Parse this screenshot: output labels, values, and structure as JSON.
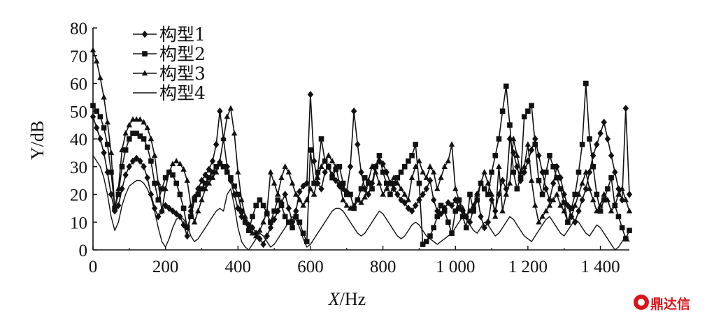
{
  "chart_data": {
    "type": "line",
    "title": "",
    "xlabel": "X/Hz",
    "xlabel_italic_part": "X",
    "xlabel_unit_part": "/Hz",
    "ylabel": "Y/dB",
    "xlim": [
      0,
      1480
    ],
    "ylim": [
      0,
      80
    ],
    "x_ticks": [
      0,
      200,
      400,
      600,
      800,
      1000,
      1200,
      1400
    ],
    "x_tick_labels": [
      "0",
      "200",
      "400",
      "600",
      "800",
      "1 000",
      "1 200",
      "1 400"
    ],
    "y_ticks": [
      0,
      10,
      20,
      30,
      40,
      50,
      60,
      70,
      80
    ],
    "y_tick_labels": [
      "0",
      "10",
      "20",
      "30",
      "40",
      "50",
      "60",
      "70",
      "80"
    ],
    "grid": false,
    "legend_position": "top-left",
    "series": [
      {
        "name": "构型1",
        "marker": "diamond",
        "x": [
          0,
          10,
          20,
          30,
          40,
          50,
          60,
          70,
          80,
          90,
          100,
          110,
          120,
          130,
          140,
          150,
          160,
          170,
          180,
          190,
          200,
          210,
          220,
          230,
          240,
          250,
          260,
          270,
          280,
          290,
          300,
          310,
          320,
          330,
          340,
          350,
          360,
          370,
          380,
          390,
          400,
          410,
          420,
          430,
          440,
          450,
          460,
          470,
          480,
          490,
          500,
          510,
          520,
          530,
          540,
          550,
          560,
          570,
          580,
          590,
          600,
          610,
          620,
          630,
          640,
          650,
          660,
          670,
          680,
          690,
          700,
          710,
          720,
          730,
          740,
          750,
          760,
          770,
          780,
          790,
          800,
          810,
          820,
          830,
          840,
          850,
          860,
          870,
          880,
          890,
          900,
          910,
          920,
          930,
          940,
          950,
          960,
          970,
          980,
          990,
          1000,
          1010,
          1020,
          1030,
          1040,
          1050,
          1060,
          1070,
          1080,
          1090,
          1100,
          1110,
          1120,
          1130,
          1140,
          1150,
          1160,
          1170,
          1180,
          1190,
          1200,
          1210,
          1220,
          1230,
          1240,
          1250,
          1260,
          1270,
          1280,
          1290,
          1300,
          1310,
          1320,
          1330,
          1340,
          1350,
          1360,
          1370,
          1380,
          1390,
          1400,
          1410,
          1420,
          1430,
          1440,
          1450,
          1460,
          1470,
          1480
        ],
        "y": [
          48,
          44,
          40,
          35,
          28,
          20,
          14,
          16,
          22,
          27,
          30,
          32,
          33,
          32,
          30,
          26,
          20,
          15,
          12,
          14,
          16,
          15,
          14,
          13,
          12,
          9,
          5,
          14,
          19,
          22,
          25,
          27,
          29,
          32,
          38,
          50,
          40,
          30,
          25,
          20,
          15,
          12,
          10,
          9,
          8,
          6,
          4,
          2,
          5,
          8,
          11,
          14,
          17,
          20,
          15,
          10,
          14,
          21,
          23,
          24,
          56,
          32,
          24,
          22,
          28,
          30,
          27,
          25,
          23,
          22,
          21,
          30,
          50,
          38,
          28,
          22,
          20,
          24,
          30,
          32,
          31,
          28,
          24,
          22,
          20,
          18,
          17,
          15,
          14,
          16,
          18,
          20,
          22,
          25,
          18,
          14,
          13,
          15,
          17,
          16,
          18,
          15,
          14,
          12,
          10,
          15,
          20,
          12,
          8,
          10,
          18,
          14,
          20,
          25,
          22,
          40,
          35,
          30,
          25,
          28,
          32,
          36,
          40,
          34,
          28,
          22,
          18,
          24,
          30,
          26,
          20,
          16,
          12,
          10,
          14,
          18,
          22,
          28,
          34,
          38,
          42,
          46,
          40,
          34,
          28,
          22,
          18,
          51,
          20
        ],
        "line_width": 1.6
      },
      {
        "name": "构型2",
        "marker": "square",
        "x": [
          0,
          10,
          20,
          30,
          40,
          50,
          60,
          70,
          80,
          90,
          100,
          110,
          120,
          130,
          140,
          150,
          160,
          170,
          180,
          190,
          200,
          210,
          220,
          230,
          240,
          250,
          260,
          270,
          280,
          290,
          300,
          310,
          320,
          330,
          340,
          350,
          360,
          370,
          380,
          390,
          400,
          410,
          420,
          430,
          440,
          450,
          460,
          470,
          480,
          490,
          500,
          510,
          520,
          530,
          540,
          550,
          560,
          570,
          580,
          590,
          600,
          610,
          620,
          630,
          640,
          650,
          660,
          670,
          680,
          690,
          700,
          710,
          720,
          730,
          740,
          750,
          760,
          770,
          780,
          790,
          800,
          810,
          820,
          830,
          840,
          850,
          860,
          870,
          880,
          890,
          900,
          910,
          920,
          930,
          940,
          950,
          960,
          970,
          980,
          990,
          1000,
          1010,
          1020,
          1030,
          1040,
          1050,
          1060,
          1070,
          1080,
          1090,
          1100,
          1110,
          1120,
          1130,
          1140,
          1150,
          1160,
          1170,
          1180,
          1190,
          1200,
          1210,
          1220,
          1230,
          1240,
          1250,
          1260,
          1270,
          1280,
          1290,
          1300,
          1310,
          1320,
          1330,
          1340,
          1350,
          1360,
          1370,
          1380,
          1390,
          1400,
          1410,
          1420,
          1430,
          1440,
          1450,
          1460,
          1470,
          1480
        ],
        "y": [
          52,
          50,
          48,
          44,
          38,
          28,
          15,
          20,
          30,
          36,
          40,
          42,
          42,
          41,
          40,
          37,
          32,
          24,
          18,
          22,
          26,
          28,
          27,
          24,
          20,
          15,
          8,
          12,
          18,
          20,
          22,
          24,
          26,
          28,
          30,
          31,
          30,
          28,
          26,
          23,
          20,
          14,
          10,
          7,
          12,
          16,
          18,
          16,
          13,
          10,
          14,
          18,
          16,
          12,
          10,
          8,
          12,
          10,
          6,
          3,
          36,
          24,
          28,
          40,
          32,
          30,
          26,
          29,
          30,
          24,
          20,
          20,
          15,
          18,
          22,
          26,
          24,
          22,
          30,
          34,
          28,
          24,
          20,
          24,
          26,
          28,
          30,
          32,
          34,
          38,
          24,
          2,
          3,
          5,
          8,
          12,
          16,
          14,
          10,
          6,
          14,
          18,
          12,
          8,
          20,
          14,
          18,
          24,
          22,
          20,
          28,
          34,
          40,
          50,
          59,
          45,
          28,
          22,
          26,
          48,
          50,
          52,
          38,
          25,
          20,
          28,
          34,
          30,
          26,
          22,
          17,
          10,
          15,
          20,
          28,
          38,
          60,
          40,
          30,
          20,
          14,
          18,
          22,
          26,
          16,
          12,
          8,
          4,
          7
        ],
        "line_width": 1.6
      },
      {
        "name": "构型3",
        "marker": "triangle",
        "x": [
          0,
          10,
          20,
          30,
          40,
          50,
          60,
          70,
          80,
          90,
          100,
          110,
          120,
          130,
          140,
          150,
          160,
          170,
          180,
          190,
          200,
          210,
          220,
          230,
          240,
          250,
          260,
          270,
          280,
          290,
          300,
          310,
          320,
          330,
          340,
          350,
          360,
          370,
          380,
          390,
          400,
          410,
          420,
          430,
          440,
          450,
          460,
          470,
          480,
          490,
          500,
          510,
          520,
          530,
          540,
          550,
          560,
          570,
          580,
          590,
          600,
          610,
          620,
          630,
          640,
          650,
          660,
          670,
          680,
          690,
          700,
          710,
          720,
          730,
          740,
          750,
          760,
          770,
          780,
          790,
          800,
          810,
          820,
          830,
          840,
          850,
          860,
          870,
          880,
          890,
          900,
          910,
          920,
          930,
          940,
          950,
          960,
          970,
          980,
          990,
          1000,
          1010,
          1020,
          1030,
          1040,
          1050,
          1060,
          1070,
          1080,
          1090,
          1100,
          1110,
          1120,
          1130,
          1140,
          1150,
          1160,
          1170,
          1180,
          1190,
          1200,
          1210,
          1220,
          1230,
          1240,
          1250,
          1260,
          1270,
          1280,
          1290,
          1300,
          1310,
          1320,
          1330,
          1340,
          1350,
          1360,
          1370,
          1380,
          1390,
          1400,
          1410,
          1420,
          1430,
          1440,
          1450,
          1460,
          1470,
          1480
        ],
        "y": [
          72,
          68,
          62,
          55,
          46,
          35,
          15,
          22,
          36,
          42,
          45,
          47,
          47,
          47,
          46,
          44,
          40,
          34,
          24,
          14,
          22,
          28,
          31,
          32,
          31,
          29,
          25,
          16,
          10,
          14,
          18,
          22,
          24,
          26,
          28,
          32,
          40,
          48,
          51,
          42,
          28,
          18,
          12,
          8,
          6,
          5,
          7,
          10,
          14,
          28,
          24,
          20,
          26,
          30,
          28,
          24,
          20,
          18,
          16,
          18,
          22,
          20,
          26,
          30,
          32,
          34,
          32,
          30,
          24,
          18,
          16,
          15,
          16,
          18,
          17,
          19,
          25,
          30,
          28,
          24,
          20,
          22,
          24,
          26,
          24,
          22,
          20,
          18,
          26,
          30,
          32,
          28,
          26,
          30,
          28,
          22,
          26,
          30,
          32,
          38,
          22,
          18,
          15,
          12,
          14,
          16,
          20,
          24,
          28,
          24,
          20,
          12,
          30,
          14,
          20,
          24,
          40,
          34,
          28,
          30,
          38,
          25,
          16,
          10,
          12,
          14,
          16,
          18,
          20,
          16,
          14,
          10,
          12,
          16,
          20,
          24,
          28,
          22,
          18,
          14,
          16,
          20,
          18,
          14,
          16,
          20,
          22,
          18,
          14
        ],
        "line_width": 1.6
      },
      {
        "name": "构型4",
        "marker": "none",
        "x": [
          0,
          10,
          20,
          30,
          40,
          50,
          60,
          70,
          80,
          90,
          100,
          110,
          120,
          130,
          140,
          150,
          160,
          170,
          180,
          190,
          200,
          210,
          220,
          230,
          240,
          250,
          260,
          270,
          280,
          290,
          300,
          310,
          320,
          330,
          340,
          350,
          360,
          370,
          380,
          390,
          400,
          410,
          420,
          430,
          440,
          450,
          460,
          470,
          480,
          490,
          500,
          510,
          520,
          530,
          540,
          550,
          560,
          570,
          580,
          590,
          600,
          610,
          620,
          630,
          640,
          650,
          660,
          670,
          680,
          690,
          700,
          710,
          720,
          730,
          740,
          750,
          760,
          770,
          780,
          790,
          800,
          810,
          820,
          830,
          840,
          850,
          860,
          870,
          880,
          890,
          900,
          910,
          920,
          930,
          940,
          950,
          960,
          970,
          980,
          990,
          1000,
          1010,
          1020,
          1030,
          1040,
          1050,
          1060,
          1070,
          1080,
          1090,
          1100,
          1110,
          1120,
          1130,
          1140,
          1150,
          1160,
          1170,
          1180,
          1190,
          1200,
          1210,
          1220,
          1230,
          1240,
          1250,
          1260,
          1270,
          1280,
          1290,
          1300,
          1310,
          1320,
          1330,
          1340,
          1350,
          1360,
          1370,
          1380,
          1390,
          1400,
          1410,
          1420,
          1430,
          1440,
          1450,
          1460,
          1470,
          1480
        ],
        "y": [
          34,
          32,
          30,
          26,
          20,
          12,
          7,
          10,
          16,
          20,
          23,
          24,
          25,
          25,
          24,
          22,
          19,
          14,
          8,
          3,
          1,
          4,
          8,
          11,
          12,
          11,
          9,
          5,
          3,
          4,
          6,
          8,
          10,
          12,
          14,
          15,
          14,
          20,
          22,
          16,
          8,
          3,
          1,
          0,
          2,
          4,
          6,
          5,
          3,
          1,
          2,
          4,
          6,
          8,
          10,
          12,
          11,
          8,
          4,
          1,
          2,
          4,
          6,
          8,
          10,
          12,
          14,
          15,
          15,
          14,
          12,
          10,
          8,
          6,
          5,
          6,
          8,
          10,
          12,
          14,
          13,
          11,
          9,
          7,
          5,
          4,
          5,
          7,
          9,
          10,
          9,
          7,
          5,
          4,
          3,
          2,
          3,
          4,
          5,
          6,
          8,
          10,
          12,
          11,
          9,
          7,
          6,
          8,
          10,
          9,
          7,
          5,
          6,
          8,
          10,
          12,
          11,
          9,
          7,
          5,
          4,
          3,
          5,
          7,
          9,
          11,
          12,
          10,
          8,
          6,
          5,
          7,
          9,
          11,
          10,
          8,
          6,
          5,
          7,
          9,
          8,
          6,
          4,
          2,
          0,
          1,
          3,
          5,
          3
        ],
        "line_width": 1.4
      }
    ]
  },
  "watermark": {
    "text": "鼎达信"
  }
}
